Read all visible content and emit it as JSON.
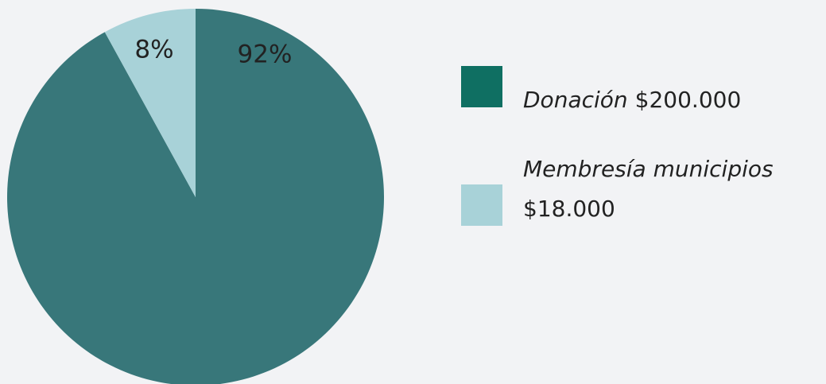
{
  "chart_data": {
    "type": "pie",
    "categories": [
      "Donación",
      "Membresía municipios"
    ],
    "values": [
      92,
      8
    ],
    "value_labels": [
      "92%",
      "8%"
    ],
    "legend_amounts": [
      "$200.000",
      "$18.000"
    ],
    "colors": [
      "#38777a",
      "#a8d2d8"
    ],
    "legend_colors": [
      "#0f6f62",
      "#a8d2d8"
    ]
  }
}
